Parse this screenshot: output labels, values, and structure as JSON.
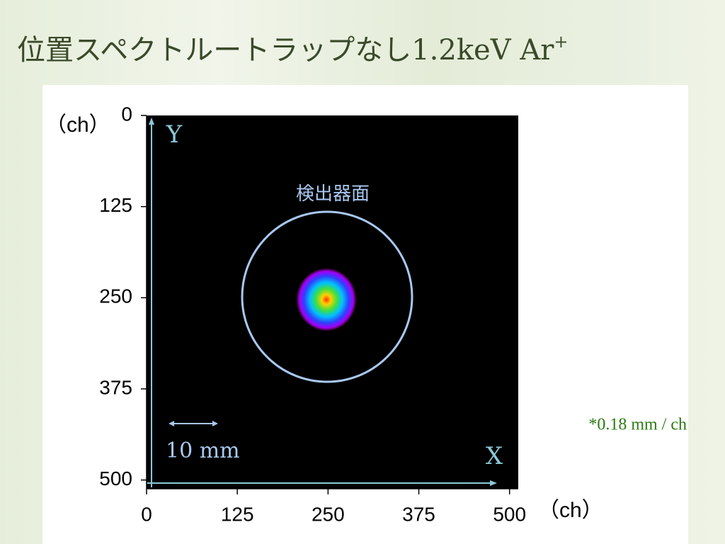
{
  "chart_data": {
    "type": "heatmap",
    "title": "位置スペクトルートラップなし1.2keV Ar",
    "title_superscript": "+",
    "xlim": [
      0,
      512
    ],
    "ylim": [
      0,
      512
    ],
    "y_reversed": true,
    "xticks": [
      0,
      125,
      250,
      375,
      500
    ],
    "yticks": [
      0,
      125,
      250,
      375,
      500
    ],
    "x_unit": "（ch）",
    "y_unit": "（ch）",
    "x_arrow_label": "X",
    "y_arrow_label": "Y",
    "detector_label": "検出器面",
    "scale_bar_label": "10 mm",
    "scale_note": "*0.18 mm / ch"
  }
}
